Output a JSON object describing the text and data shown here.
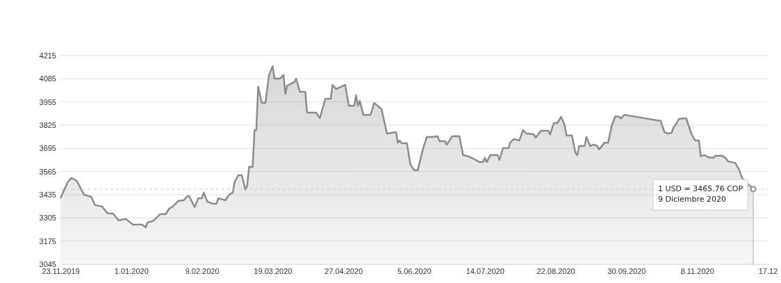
{
  "chart_data": {
    "type": "area",
    "x": [
      "2019-11-23",
      "2019-11-27",
      "2019-11-29",
      "2019-12-02",
      "2019-12-06",
      "2019-12-10",
      "2019-12-12",
      "2019-12-16",
      "2019-12-19",
      "2019-12-22",
      "2019-12-25",
      "2019-12-29",
      "2020-01-02",
      "2020-01-07",
      "2020-01-09",
      "2020-01-10",
      "2020-01-13",
      "2020-01-17",
      "2020-01-20",
      "2020-01-22",
      "2020-01-24",
      "2020-01-27",
      "2020-01-30",
      "2020-02-01",
      "2020-02-02",
      "2020-02-05",
      "2020-02-07",
      "2020-02-09",
      "2020-02-10",
      "2020-02-12",
      "2020-02-15",
      "2020-02-17",
      "2020-02-18",
      "2020-02-22",
      "2020-02-24",
      "2020-02-26",
      "2020-02-27",
      "2020-02-29",
      "2020-03-02",
      "2020-03-04",
      "2020-03-05",
      "2020-03-06",
      "2020-03-08",
      "2020-03-09",
      "2020-03-10",
      "2020-03-11",
      "2020-03-13",
      "2020-03-15",
      "2020-03-17",
      "2020-03-19",
      "2020-03-20",
      "2020-03-23",
      "2020-03-25",
      "2020-03-26",
      "2020-03-27",
      "2020-03-31",
      "2020-04-01",
      "2020-04-03",
      "2020-04-06",
      "2020-04-07",
      "2020-04-12",
      "2020-04-14",
      "2020-04-17",
      "2020-04-20",
      "2020-04-21",
      "2020-04-23",
      "2020-04-28",
      "2020-04-30",
      "2020-05-03",
      "2020-05-04",
      "2020-05-05",
      "2020-05-06",
      "2020-05-08",
      "2020-05-11",
      "2020-05-12",
      "2020-05-14",
      "2020-05-18",
      "2020-05-20",
      "2020-05-21",
      "2020-05-26",
      "2020-05-27",
      "2020-05-28",
      "2020-05-29",
      "2020-06-01",
      "2020-06-03",
      "2020-06-05",
      "2020-06-07",
      "2020-06-10",
      "2020-06-12",
      "2020-06-15",
      "2020-06-18",
      "2020-06-19",
      "2020-06-22",
      "2020-06-23",
      "2020-06-26",
      "2020-06-30",
      "2020-07-02",
      "2020-07-05",
      "2020-07-09",
      "2020-07-11",
      "2020-07-13",
      "2020-07-14",
      "2020-07-15",
      "2020-07-17",
      "2020-07-21",
      "2020-07-22",
      "2020-07-24",
      "2020-07-27",
      "2020-07-28",
      "2020-07-30",
      "2020-08-02",
      "2020-08-04",
      "2020-08-06",
      "2020-08-10",
      "2020-08-11",
      "2020-08-14",
      "2020-08-18",
      "2020-08-19",
      "2020-08-21",
      "2020-08-23",
      "2020-08-25",
      "2020-08-27",
      "2020-08-28",
      "2020-08-31",
      "2020-09-02",
      "2020-09-03",
      "2020-09-04",
      "2020-09-07",
      "2020-09-08",
      "2020-09-10",
      "2020-09-12",
      "2020-09-14",
      "2020-09-15",
      "2020-09-18",
      "2020-09-20",
      "2020-09-22",
      "2020-09-24",
      "2020-09-26",
      "2020-09-27",
      "2020-09-29",
      "2020-10-19",
      "2020-10-21",
      "2020-10-23",
      "2020-10-25",
      "2020-10-26",
      "2020-10-27",
      "2020-10-29",
      "2020-11-02",
      "2020-11-05",
      "2020-11-07",
      "2020-11-09",
      "2020-11-10",
      "2020-11-12",
      "2020-11-14",
      "2020-11-17",
      "2020-11-18",
      "2020-11-22",
      "2020-11-24",
      "2020-11-25",
      "2020-11-29",
      "2020-12-01",
      "2020-12-03",
      "2020-12-09"
    ],
    "series": [
      {
        "color": "#8c8c8c",
        "values": [
          3415,
          3505,
          3529,
          3513,
          3435,
          3423,
          3377,
          3369,
          3330,
          3330,
          3291,
          3299,
          3267,
          3267,
          3252,
          3279,
          3287,
          3326,
          3326,
          3357,
          3369,
          3400,
          3404,
          3427,
          3427,
          3365,
          3415,
          3415,
          3447,
          3396,
          3384,
          3384,
          3415,
          3404,
          3435,
          3447,
          3505,
          3544,
          3544,
          3462,
          3486,
          3591,
          3591,
          3798,
          3798,
          4040,
          3950,
          3950,
          4106,
          4156,
          4086,
          4086,
          4106,
          4001,
          4047,
          4067,
          4086,
          4012,
          4012,
          3895,
          3895,
          3864,
          3973,
          3973,
          4051,
          4028,
          4051,
          3934,
          3934,
          3993,
          3934,
          3962,
          3883,
          3883,
          3883,
          3950,
          3915,
          3825,
          3778,
          3786,
          3727,
          3739,
          3724,
          3724,
          3603,
          3572,
          3572,
          3696,
          3759,
          3759,
          3763,
          3735,
          3735,
          3716,
          3763,
          3763,
          3657,
          3650,
          3630,
          3618,
          3618,
          3642,
          3618,
          3657,
          3657,
          3630,
          3696,
          3696,
          3727,
          3747,
          3739,
          3798,
          3778,
          3774,
          3755,
          3794,
          3794,
          3774,
          3837,
          3837,
          3872,
          3825,
          3767,
          3767,
          3669,
          3657,
          3708,
          3708,
          3759,
          3708,
          3716,
          3708,
          3689,
          3727,
          3727,
          3825,
          3876,
          3872,
          3864,
          3883,
          3848,
          3786,
          3778,
          3782,
          3813,
          3825,
          3860,
          3864,
          3774,
          3739,
          3739,
          3650,
          3657,
          3646,
          3642,
          3653,
          3653,
          3638,
          3622,
          3614,
          3579,
          3525,
          3465.76
        ]
      }
    ],
    "xlim": [
      "2019-11-23",
      "2020-12-17"
    ],
    "xticks": [
      {
        "value": "2019-11-23",
        "label": "23.11.2019"
      },
      {
        "value": "2020-01-01",
        "label": "1.01.2020"
      },
      {
        "value": "2020-02-09",
        "label": "9.02.2020"
      },
      {
        "value": "2020-03-19",
        "label": "19.03.2020"
      },
      {
        "value": "2020-04-27",
        "label": "27.04.2020"
      },
      {
        "value": "2020-06-05",
        "label": "5.06.2020"
      },
      {
        "value": "2020-07-14",
        "label": "14.07.2020"
      },
      {
        "value": "2020-08-22",
        "label": "22.08.2020"
      },
      {
        "value": "2020-09-30",
        "label": "30.09.2020"
      },
      {
        "value": "2020-11-08",
        "label": "8.11.2020"
      },
      {
        "value": "2020-12-17",
        "label": "17.12"
      }
    ],
    "ylim": [
      3045,
      4215
    ],
    "yticks": [
      3045,
      3175,
      3305,
      3435,
      3565,
      3695,
      3825,
      3955,
      4085,
      4215
    ],
    "grid": "y",
    "marker": "none",
    "ref_lines": [
      {
        "axis": "y",
        "value": 3465.76,
        "color": "#c8c8c8",
        "line_style": "dashed"
      },
      {
        "axis": "x",
        "value": "2020-12-09",
        "color": "#b0b0b0",
        "line_style": "solid"
      }
    ],
    "annotations": [
      {
        "text": "1 USD = 3465.76 COP",
        "x": "2020-12-09",
        "y": 3465.76
      },
      "9 Diciembre 2020"
    ]
  }
}
